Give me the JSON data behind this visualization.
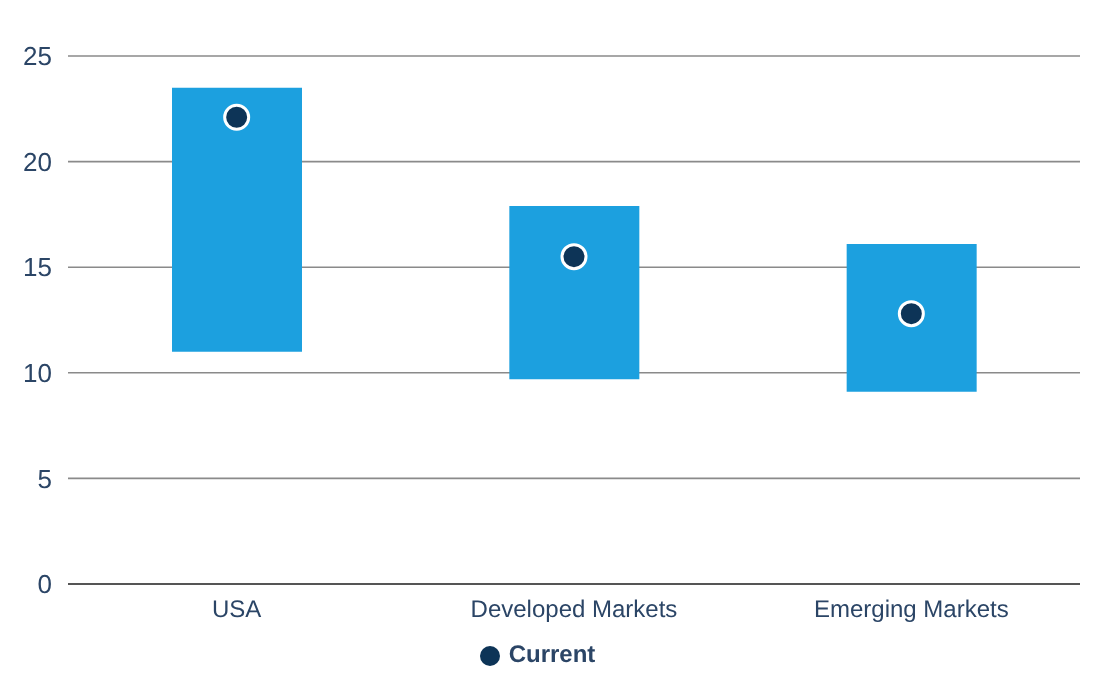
{
  "chart_data": {
    "type": "bar",
    "categories": [
      "USA",
      "Developed Markets",
      "Emerging Markets"
    ],
    "series": [
      {
        "type": "bar",
        "color": "#1ca0df",
        "base": [
          11,
          9.7,
          9.1
        ],
        "values": [
          12.5,
          8.2,
          7.0
        ]
      },
      {
        "type": "scatter",
        "name": "Current",
        "color": "#0d3457",
        "x": [
          "USA",
          "Developed Markets",
          "Emerging Markets"
        ],
        "values": [
          22.1,
          15.5,
          12.8
        ]
      }
    ],
    "ylim": [
      0,
      25
    ],
    "yticks": [
      0,
      5,
      10,
      15,
      20,
      25
    ],
    "grid": "y",
    "legend": "bottom",
    "marker": "circle"
  }
}
